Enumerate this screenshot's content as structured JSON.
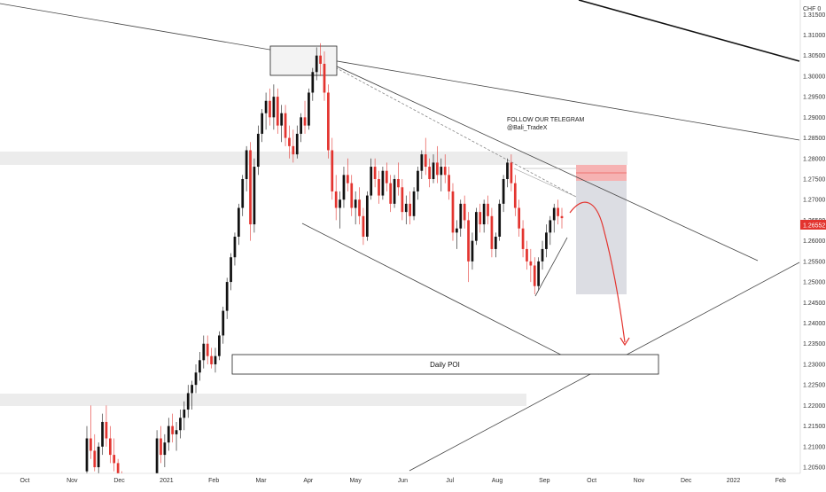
{
  "chart_data": {
    "type": "candlestick",
    "currency_label": "CHF",
    "currency_suffix": "0",
    "last_price": "1.26552",
    "poi_label": "Daily POI",
    "annotation_lines": [
      "FOLLOW OUR TELEGRAM",
      "@Bali_TradeX"
    ],
    "x_tick_labels": [
      "Oct",
      "Nov",
      "Dec",
      "2021",
      "Feb",
      "Mar",
      "Apr",
      "May",
      "Jun",
      "Jul",
      "Aug",
      "Sep",
      "Oct",
      "Nov",
      "Dec",
      "2022",
      "Feb"
    ],
    "y_tick_labels": [
      "1.20500",
      "1.21000",
      "1.21500",
      "1.22000",
      "1.22500",
      "1.23000",
      "1.23500",
      "1.24000",
      "1.24500",
      "1.25000",
      "1.25500",
      "1.26000",
      "1.26500",
      "1.27000",
      "1.27500",
      "1.28000",
      "1.28500",
      "1.29000",
      "1.29500",
      "1.30000",
      "1.30500",
      "1.31000",
      "1.31500"
    ],
    "y_range": [
      1.2035,
      1.3185
    ],
    "colors": {
      "up": "#111111",
      "down": "#e3342f",
      "last_price_tag": "#e3342f",
      "zone": "#ececec",
      "projection_box": "#dcdde3",
      "stop_box": "#f5a5a5",
      "projection_arrow": "#e3342f",
      "trendline": "#444444"
    },
    "candles": [
      [
        1.204,
        1.215,
        1.203,
        1.212
      ],
      [
        1.212,
        1.22,
        1.207,
        1.209
      ],
      [
        1.209,
        1.213,
        1.204,
        1.205
      ],
      [
        1.205,
        1.211,
        1.203,
        1.21
      ],
      [
        1.21,
        1.218,
        1.208,
        1.216
      ],
      [
        1.216,
        1.22,
        1.21,
        1.212
      ],
      [
        1.212,
        1.215,
        1.206,
        1.208
      ],
      [
        1.208,
        1.212,
        1.204,
        1.206
      ],
      [
        1.206,
        1.207,
        1.2,
        1.202
      ],
      [
        1.202,
        1.204,
        1.198,
        1.2
      ],
      [
        1.2,
        1.201,
        1.197,
        1.199
      ],
      [
        1.199,
        1.2,
        1.196,
        1.198
      ],
      [
        1.198,
        1.199,
        1.196,
        1.197
      ],
      [
        1.197,
        1.198,
        1.195,
        1.196
      ],
      [
        1.196,
        1.198,
        1.195,
        1.197
      ],
      [
        1.197,
        1.199,
        1.196,
        1.198
      ],
      [
        1.198,
        1.201,
        1.197,
        1.2
      ],
      [
        1.2,
        1.203,
        1.199,
        1.202
      ],
      [
        1.202,
        1.214,
        1.201,
        1.212
      ],
      [
        1.212,
        1.215,
        1.206,
        1.208
      ],
      [
        1.208,
        1.213,
        1.205,
        1.211
      ],
      [
        1.211,
        1.217,
        1.209,
        1.215
      ],
      [
        1.215,
        1.218,
        1.211,
        1.213
      ],
      [
        1.213,
        1.216,
        1.209,
        1.214
      ],
      [
        1.214,
        1.219,
        1.212,
        1.217
      ],
      [
        1.217,
        1.221,
        1.214,
        1.219
      ],
      [
        1.219,
        1.225,
        1.217,
        1.223
      ],
      [
        1.223,
        1.226,
        1.219,
        1.225
      ],
      [
        1.225,
        1.23,
        1.223,
        1.228
      ],
      [
        1.228,
        1.233,
        1.226,
        1.231
      ],
      [
        1.231,
        1.237,
        1.229,
        1.235
      ],
      [
        1.235,
        1.237,
        1.23,
        1.232
      ],
      [
        1.232,
        1.234,
        1.229,
        1.23
      ],
      [
        1.23,
        1.234,
        1.228,
        1.232
      ],
      [
        1.232,
        1.238,
        1.231,
        1.237
      ],
      [
        1.237,
        1.244,
        1.235,
        1.243
      ],
      [
        1.243,
        1.251,
        1.241,
        1.25
      ],
      [
        1.25,
        1.257,
        1.248,
        1.256
      ],
      [
        1.256,
        1.262,
        1.254,
        1.261
      ],
      [
        1.261,
        1.269,
        1.259,
        1.268
      ],
      [
        1.268,
        1.276,
        1.266,
        1.275
      ],
      [
        1.275,
        1.283,
        1.272,
        1.282
      ],
      [
        1.282,
        1.284,
        1.26,
        1.264
      ],
      [
        1.264,
        1.28,
        1.262,
        1.278
      ],
      [
        1.278,
        1.288,
        1.276,
        1.286
      ],
      [
        1.286,
        1.292,
        1.284,
        1.291
      ],
      [
        1.291,
        1.296,
        1.287,
        1.294
      ],
      [
        1.294,
        1.297,
        1.288,
        1.29
      ],
      [
        1.29,
        1.298,
        1.287,
        1.295
      ],
      [
        1.295,
        1.297,
        1.286,
        1.288
      ],
      [
        1.288,
        1.293,
        1.284,
        1.291
      ],
      [
        1.291,
        1.293,
        1.283,
        1.285
      ],
      [
        1.285,
        1.288,
        1.28,
        1.283
      ],
      [
        1.283,
        1.287,
        1.279,
        1.281
      ],
      [
        1.281,
        1.288,
        1.28,
        1.286
      ],
      [
        1.286,
        1.291,
        1.284,
        1.29
      ],
      [
        1.29,
        1.294,
        1.286,
        1.288
      ],
      [
        1.288,
        1.297,
        1.287,
        1.296
      ],
      [
        1.296,
        1.302,
        1.294,
        1.301
      ],
      [
        1.301,
        1.307,
        1.299,
        1.305
      ],
      [
        1.305,
        1.308,
        1.3,
        1.303
      ],
      [
        1.303,
        1.306,
        1.294,
        1.296
      ],
      [
        1.296,
        1.298,
        1.28,
        1.282
      ],
      [
        1.282,
        1.285,
        1.27,
        1.272
      ],
      [
        1.272,
        1.276,
        1.265,
        1.268
      ],
      [
        1.268,
        1.272,
        1.263,
        1.27
      ],
      [
        1.27,
        1.278,
        1.268,
        1.276
      ],
      [
        1.276,
        1.28,
        1.272,
        1.274
      ],
      [
        1.274,
        1.276,
        1.266,
        1.268
      ],
      [
        1.268,
        1.272,
        1.264,
        1.27
      ],
      [
        1.27,
        1.273,
        1.264,
        1.266
      ],
      [
        1.266,
        1.268,
        1.259,
        1.261
      ],
      [
        1.261,
        1.272,
        1.26,
        1.271
      ],
      [
        1.271,
        1.28,
        1.27,
        1.278
      ],
      [
        1.278,
        1.28,
        1.273,
        1.275
      ],
      [
        1.275,
        1.277,
        1.269,
        1.271
      ],
      [
        1.271,
        1.278,
        1.27,
        1.277
      ],
      [
        1.277,
        1.279,
        1.272,
        1.274
      ],
      [
        1.274,
        1.276,
        1.267,
        1.269
      ],
      [
        1.269,
        1.276,
        1.268,
        1.275
      ],
      [
        1.275,
        1.279,
        1.271,
        1.273
      ],
      [
        1.273,
        1.275,
        1.265,
        1.267
      ],
      [
        1.267,
        1.271,
        1.264,
        1.269
      ],
      [
        1.269,
        1.272,
        1.264,
        1.266
      ],
      [
        1.266,
        1.273,
        1.265,
        1.272
      ],
      [
        1.272,
        1.278,
        1.27,
        1.277
      ],
      [
        1.277,
        1.282,
        1.275,
        1.281
      ],
      [
        1.281,
        1.285,
        1.276,
        1.278
      ],
      [
        1.278,
        1.28,
        1.273,
        1.275
      ],
      [
        1.275,
        1.281,
        1.274,
        1.279
      ],
      [
        1.279,
        1.283,
        1.274,
        1.276
      ],
      [
        1.276,
        1.28,
        1.272,
        1.278
      ],
      [
        1.278,
        1.281,
        1.274,
        1.276
      ],
      [
        1.276,
        1.278,
        1.27,
        1.272
      ],
      [
        1.272,
        1.274,
        1.26,
        1.262
      ],
      [
        1.262,
        1.265,
        1.258,
        1.263
      ],
      [
        1.263,
        1.27,
        1.261,
        1.269
      ],
      [
        1.269,
        1.271,
        1.263,
        1.265
      ],
      [
        1.265,
        1.267,
        1.25,
        1.255
      ],
      [
        1.255,
        1.262,
        1.253,
        1.26
      ],
      [
        1.26,
        1.268,
        1.259,
        1.267
      ],
      [
        1.267,
        1.269,
        1.262,
        1.264
      ],
      [
        1.264,
        1.27,
        1.262,
        1.269
      ],
      [
        1.269,
        1.271,
        1.264,
        1.266
      ],
      [
        1.266,
        1.268,
        1.256,
        1.258
      ],
      [
        1.258,
        1.262,
        1.256,
        1.261
      ],
      [
        1.261,
        1.27,
        1.26,
        1.269
      ],
      [
        1.269,
        1.276,
        1.267,
        1.275
      ],
      [
        1.275,
        1.28,
        1.273,
        1.279
      ],
      [
        1.279,
        1.281,
        1.272,
        1.274
      ],
      [
        1.274,
        1.276,
        1.266,
        1.268
      ],
      [
        1.268,
        1.27,
        1.261,
        1.263
      ],
      [
        1.263,
        1.265,
        1.256,
        1.258
      ],
      [
        1.258,
        1.26,
        1.253,
        1.255
      ],
      [
        1.255,
        1.258,
        1.25,
        1.254
      ],
      [
        1.254,
        1.256,
        1.247,
        1.249
      ],
      [
        1.249,
        1.256,
        1.248,
        1.255
      ],
      [
        1.255,
        1.26,
        1.253,
        1.258
      ],
      [
        1.258,
        1.264,
        1.256,
        1.262
      ],
      [
        1.262,
        1.266,
        1.259,
        1.265
      ],
      [
        1.265,
        1.269,
        1.262,
        1.268
      ],
      [
        1.268,
        1.27,
        1.264,
        1.266
      ],
      [
        1.266,
        1.268,
        1.263,
        1.2655
      ]
    ]
  }
}
